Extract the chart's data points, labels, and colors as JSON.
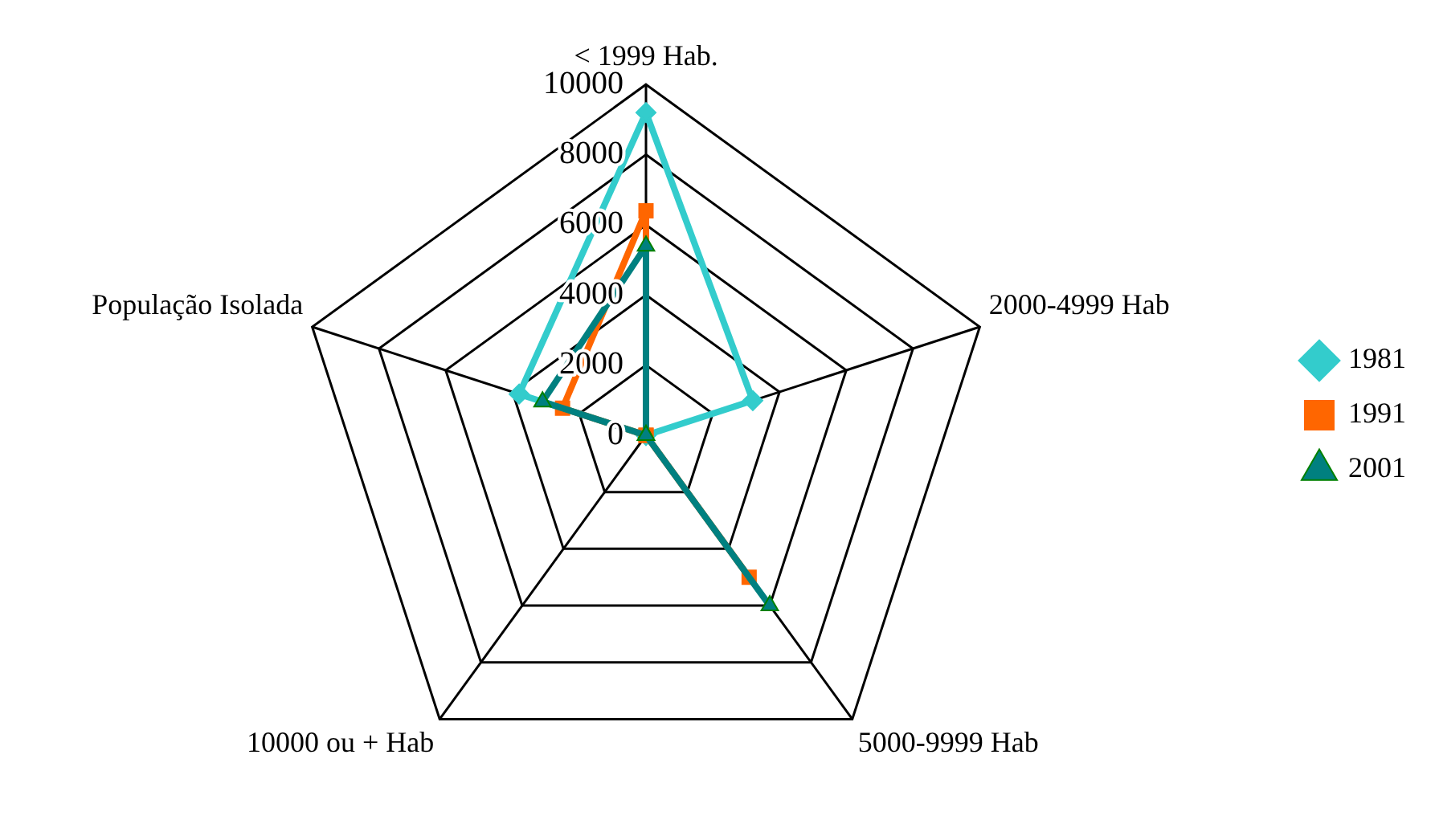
{
  "chart_data": {
    "type": "radar",
    "categories": [
      "< 1999 Hab.",
      "2000-4999 Hab",
      "5000-9999 Hab",
      "10000 ou + Hab",
      "População Isolada"
    ],
    "series": [
      {
        "name": "1981",
        "color": "#33cccc",
        "marker": "diamond",
        "values": [
          9200,
          3200,
          0,
          0,
          3800
        ]
      },
      {
        "name": "1991",
        "color": "#ff6600",
        "marker": "square",
        "values": [
          6400,
          0,
          5000,
          0,
          2500
        ]
      },
      {
        "name": "2001",
        "color": "#008080",
        "marker": "triangle",
        "values": [
          5400,
          0,
          6000,
          0,
          3100
        ]
      }
    ],
    "ylim": [
      0,
      10000
    ],
    "yticks": [
      0,
      2000,
      4000,
      6000,
      8000,
      10000
    ],
    "grid": true,
    "legend": "right"
  }
}
